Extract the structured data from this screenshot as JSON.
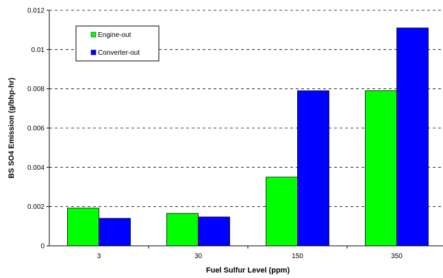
{
  "chart_data": {
    "type": "bar",
    "categories": [
      "3",
      "30",
      "150",
      "350"
    ],
    "series": [
      {
        "name": "Engine-out",
        "color": "#00ff00",
        "values": [
          0.00192,
          0.00165,
          0.0035,
          0.0079
        ]
      },
      {
        "name": "Converter-out",
        "color": "#0000ff",
        "values": [
          0.0014,
          0.00147,
          0.0079,
          0.0111
        ]
      }
    ],
    "xlabel": "Fuel Sulfur Level  (ppm)",
    "ylabel": "BS SO4 Emission  (g/bhp-hr)",
    "ylim": [
      0,
      0.012
    ],
    "yticks": [
      0,
      0.002,
      0.004,
      0.006,
      0.008,
      0.01,
      0.012
    ],
    "ytick_labels": [
      "0",
      "0.002",
      "0.004",
      "0.006",
      "0.008",
      "0.01",
      "0.012"
    ],
    "grid": "horizontal dashed",
    "legend": "top-left"
  }
}
